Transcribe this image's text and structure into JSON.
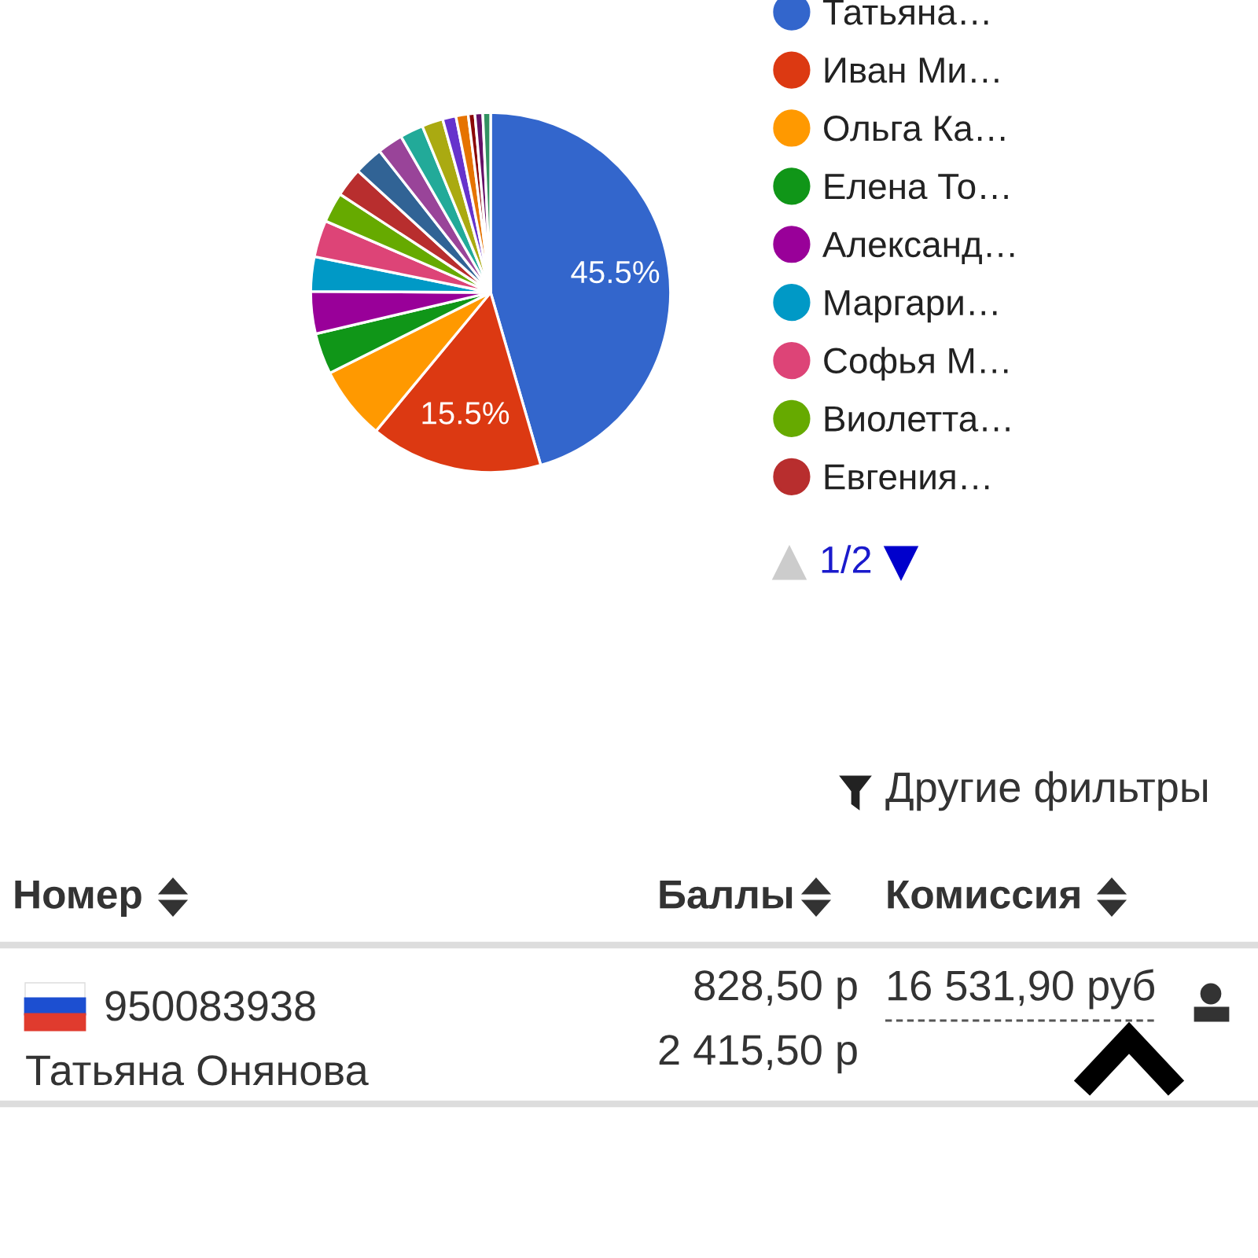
{
  "chart_data": {
    "type": "pie",
    "categories": [
      "Татьяна…",
      "Иван Ми…",
      "Ольга Ка…",
      "Елена То…",
      "Александ…",
      "Маргари…",
      "Софья М…",
      "Виолетта…",
      "Евгения…",
      null,
      null,
      null,
      null,
      null,
      null,
      null,
      null,
      null
    ],
    "values": [
      45.5,
      15.5,
      6.6,
      3.7,
      3.8,
      3.1,
      3.3,
      2.7,
      2.6,
      2.6,
      2.3,
      2.1,
      1.9,
      1.2,
      1.1,
      0.6,
      0.7,
      0.7
    ],
    "colors": [
      "#3366cc",
      "#dc3912",
      "#ff9900",
      "#109618",
      "#990099",
      "#0099c6",
      "#dd4477",
      "#66aa00",
      "#b82e2e",
      "#316395",
      "#994499",
      "#22aa99",
      "#aaaa11",
      "#6633cc",
      "#e67300",
      "#8b0707",
      "#651067",
      "#329262"
    ],
    "value_labels": [
      "45.5%",
      "15.5%",
      null,
      null,
      null,
      null,
      null,
      null,
      null,
      null,
      null,
      null,
      null,
      null,
      null,
      null,
      null,
      null
    ],
    "legend": "right",
    "annotations": [
      "1/2",
      "Другие фильтры",
      "Номер",
      "Баллы",
      "Комиссия",
      "950083938",
      "Татьяна Онянова",
      "828,50 р",
      "2 415,50 р",
      "16 531,90 руб"
    ]
  }
}
